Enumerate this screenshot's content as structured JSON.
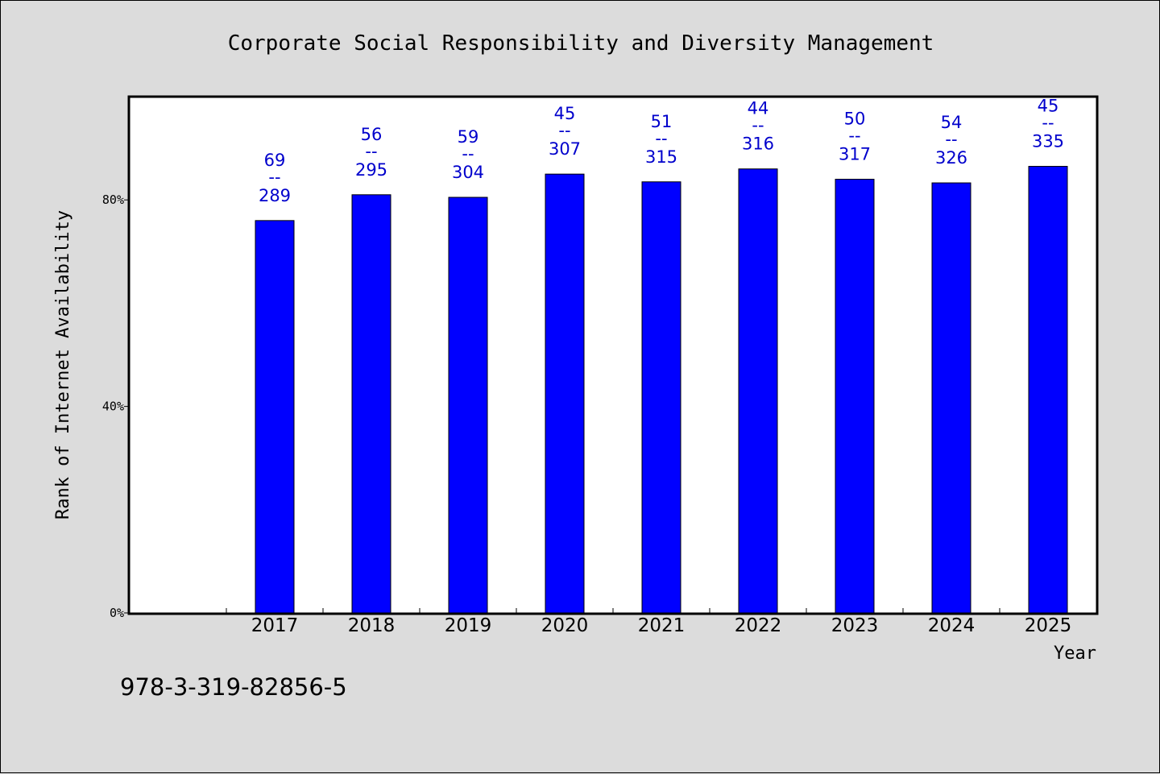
{
  "chart_data": {
    "type": "bar",
    "title": "Corporate Social Responsibility and Diversity Management",
    "xlabel": "Year",
    "ylabel": "Rank of Internet Availability",
    "categories": [
      "2017",
      "2018",
      "2019",
      "2020",
      "2021",
      "2022",
      "2023",
      "2024",
      "2025"
    ],
    "values": [
      76,
      81,
      80.5,
      85,
      83.5,
      86,
      84,
      83.3,
      86.5
    ],
    "labels_top": [
      "69",
      "56",
      "59",
      "45",
      "51",
      "44",
      "50",
      "54",
      "45"
    ],
    "labels_bottom": [
      "289",
      "295",
      "304",
      "307",
      "315",
      "316",
      "317",
      "326",
      "335"
    ],
    "label_separator": "--",
    "ylim": [
      0,
      100
    ],
    "yticks": [
      0,
      40,
      80
    ],
    "ytick_labels": [
      "0%",
      "40%",
      "80%"
    ],
    "grid": false,
    "legend": "none",
    "bar_color": "#0000ff",
    "label_color": "#0000cc"
  },
  "footer": {
    "isbn": "978-3-319-82856-5"
  }
}
